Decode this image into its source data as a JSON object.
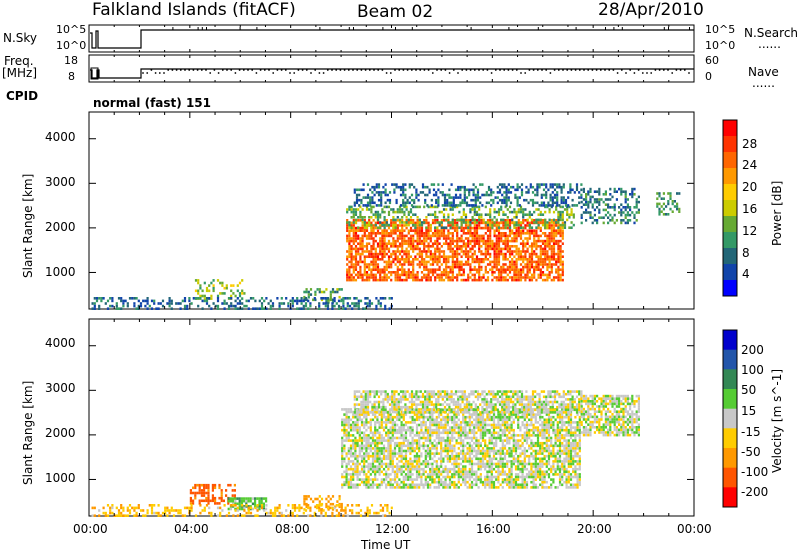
{
  "header": {
    "title": "Falkland Islands (fitACF)",
    "beam": "Beam 02",
    "date": "28/Apr/2010"
  },
  "strips": {
    "nsky_label": "N.Sky",
    "nsky_ticks": [
      "10^5",
      "10^0"
    ],
    "nsearch_label": "N.Search",
    "nsearch_ticks": [
      "10^5",
      "10^0"
    ],
    "freq_label_1": "Freq.",
    "freq_label_2": "[MHz]",
    "freq_ticks": [
      "18",
      "8"
    ],
    "nave_label": "Nave",
    "nave_ticks": [
      "60",
      "0"
    ],
    "cpid_label": "CPID",
    "cpid_value": "normal (fast) 151",
    "legend_dots": "......"
  },
  "panels": {
    "power": {
      "ylabel": "Slant Range [km]",
      "yticks": [
        "4000",
        "3000",
        "2000",
        "1000"
      ],
      "colorbar_label": "Power [dB]",
      "colorbar_ticks": [
        "28",
        "24",
        "20",
        "16",
        "12",
        "8",
        "4"
      ],
      "colorbar_colors": [
        "#ff0000",
        "#ff3300",
        "#ff6600",
        "#ff9900",
        "#ffcc00",
        "#cccc00",
        "#66aa33",
        "#339966",
        "#226677",
        "#1144aa",
        "#0000ff"
      ]
    },
    "velocity": {
      "ylabel": "Slant Range [km]",
      "yticks": [
        "4000",
        "3000",
        "2000",
        "1000"
      ],
      "colorbar_label": "Velocity [m s^-1]",
      "colorbar_ticks": [
        "200",
        "100",
        "50",
        "15",
        "-15",
        "-50",
        "-100",
        "-200"
      ],
      "colorbar_colors": [
        "#0000cc",
        "#2255aa",
        "#338855",
        "#55cc33",
        "#c8c8c8",
        "#ffcc00",
        "#ff9900",
        "#ff5500",
        "#ff0000"
      ]
    }
  },
  "xaxis": {
    "ticks": [
      "00:00",
      "04:00",
      "08:00",
      "12:00",
      "16:00",
      "20:00",
      "00:00"
    ],
    "label": "Time UT"
  },
  "chart_data": [
    {
      "type": "heatmap",
      "title": "Power",
      "xlabel": "Time UT",
      "ylabel": "Slant Range [km]",
      "xlim": [
        0,
        24
      ],
      "ylim": [
        180,
        4600
      ],
      "colorbar": {
        "label": "Power [dB]",
        "range": [
          0,
          32
        ],
        "ticks": [
          4,
          8,
          12,
          16,
          20,
          24,
          28
        ]
      },
      "regions": [
        {
          "x": [
            10.2,
            18.8
          ],
          "y": [
            800,
            2200
          ],
          "value": 26
        },
        {
          "x": [
            10.2,
            19.2
          ],
          "y": [
            2000,
            2500
          ],
          "value": 12
        },
        {
          "x": [
            10.5,
            19.5
          ],
          "y": [
            2500,
            3000
          ],
          "value": 6
        },
        {
          "x": [
            19.5,
            21.8
          ],
          "y": [
            2100,
            2900
          ],
          "value": 8
        },
        {
          "x": [
            4.2,
            6.2
          ],
          "y": [
            400,
            850
          ],
          "value": 14
        },
        {
          "x": [
            8.5,
            10.0
          ],
          "y": [
            350,
            650
          ],
          "value": 10
        },
        {
          "x": [
            0.1,
            12.0
          ],
          "y": [
            180,
            450
          ],
          "value": 6
        },
        {
          "x": [
            22.5,
            23.4
          ],
          "y": [
            2300,
            2800
          ],
          "value": 10
        }
      ]
    },
    {
      "type": "heatmap",
      "title": "Velocity",
      "xlabel": "Time UT",
      "ylabel": "Slant Range [km]",
      "xlim": [
        0,
        24
      ],
      "ylim": [
        180,
        4600
      ],
      "colorbar": {
        "label": "Velocity [m s^-1]",
        "range": [
          -250,
          250
        ],
        "ticks": [
          200,
          100,
          50,
          15,
          -15,
          -50,
          -100,
          -200
        ]
      },
      "regions": [
        {
          "x": [
            10.0,
            19.5
          ],
          "y": [
            800,
            2600
          ],
          "value": 0
        },
        {
          "x": [
            10.5,
            19.5
          ],
          "y": [
            2500,
            3000
          ],
          "value": 0
        },
        {
          "x": [
            19.5,
            21.8
          ],
          "y": [
            2000,
            2900
          ],
          "value": 0
        },
        {
          "x": [
            4.0,
            5.8
          ],
          "y": [
            450,
            900
          ],
          "value": -120
        },
        {
          "x": [
            5.5,
            7.0
          ],
          "y": [
            350,
            600
          ],
          "value": 40
        },
        {
          "x": [
            8.5,
            10.0
          ],
          "y": [
            350,
            650
          ],
          "value": -70
        },
        {
          "x": [
            0.1,
            12.0
          ],
          "y": [
            180,
            450
          ],
          "value": -40
        }
      ]
    }
  ]
}
